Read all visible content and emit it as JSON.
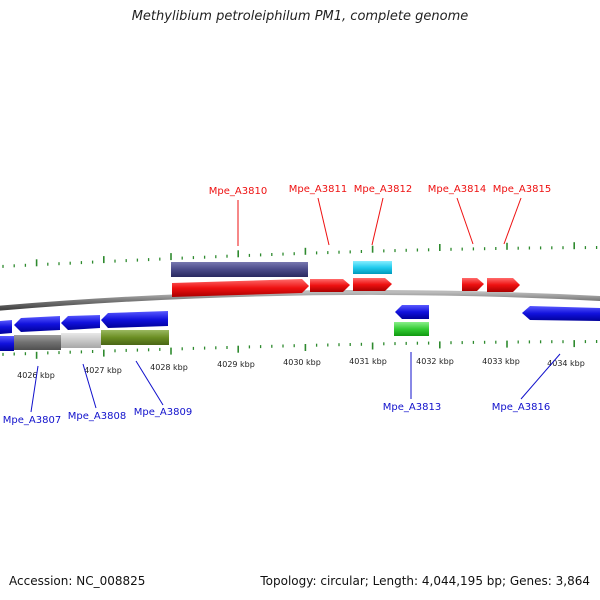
{
  "title": "Methylibium petroleiphilum PM1, complete genome",
  "footer": {
    "accession": "Accession: NC_008825",
    "summary": "Topology: circular; Length: 4,044,195 bp; Genes: 3,864"
  },
  "ruler_labels": [
    "4026 kbp",
    "4027 kbp",
    "4028 kbp",
    "4029 kbp",
    "4030 kbp",
    "4031 kbp",
    "4032 kbp",
    "4033 kbp",
    "4034 kbp"
  ],
  "genes_top": [
    {
      "name": "Mpe_A3810"
    },
    {
      "name": "Mpe_A3811"
    },
    {
      "name": "Mpe_A3812"
    },
    {
      "name": "Mpe_A3814"
    },
    {
      "name": "Mpe_A3815"
    }
  ],
  "genes_bottom": [
    {
      "name": "Mpe_A3807"
    },
    {
      "name": "Mpe_A3808"
    },
    {
      "name": "Mpe_A3809"
    },
    {
      "name": "Mpe_A3813"
    },
    {
      "name": "Mpe_A3816"
    }
  ],
  "colors": {
    "forward": "#ee1111",
    "reverse": "#1111dd",
    "tick": "#2e8a2e",
    "backbone": "#888888",
    "cds_navy": "#4a4a88",
    "cyan": "#22ccee",
    "green": "#33cc33"
  }
}
